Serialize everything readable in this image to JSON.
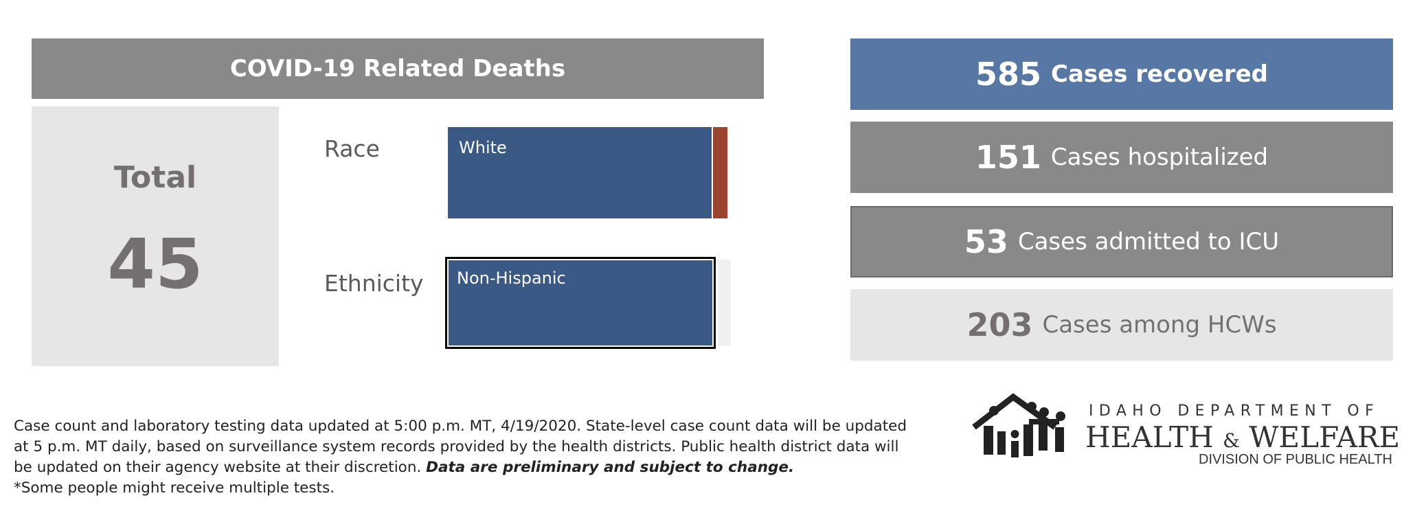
{
  "deaths": {
    "header": "COVID-19 Related Deaths",
    "total_label": "Total",
    "total_value": "45",
    "race": {
      "label": "Race",
      "bar_label": "White",
      "colors": {
        "main": "#3a5a85",
        "other": "#9b4530"
      }
    },
    "ethnicity": {
      "label": "Ethnicity",
      "bar_label": "Non-Hispanic",
      "colors": {
        "main": "#3a5a85"
      }
    }
  },
  "stats": [
    {
      "number": "585",
      "text": "Cases recovered",
      "color": "#5778a4"
    },
    {
      "number": "151",
      "text": "Cases hospitalized",
      "color": "#898989"
    },
    {
      "number": "53",
      "text": "Cases admitted to ICU",
      "color": "#898989"
    },
    {
      "number": "203",
      "text": "Cases among HCWs",
      "color": "#e6e6e6"
    }
  ],
  "note": {
    "line1": "Case count and laboratory testing data updated at 5:00 p.m. MT, 4/19/2020. State-level case count data will be updated",
    "line2": "at 5 p.m. MT daily, based on surveillance system records provided by the health districts. Public health district data will",
    "line3": "be updated on their agency website at their discretion.",
    "emphasis": "Data are preliminary and subject to change.",
    "line4": "*Some people might receive multiple tests."
  },
  "logo": {
    "line1": "IDAHO DEPARTMENT OF",
    "health": "HEALTH",
    "amp": "&",
    "welfare": "WELFARE",
    "division": "DIVISION OF PUBLIC HEALTH"
  }
}
